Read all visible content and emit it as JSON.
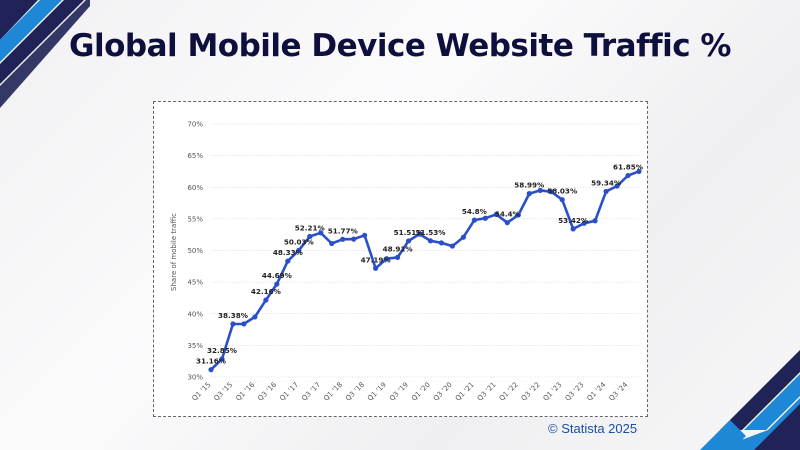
{
  "title": "Global Mobile Device Website Traffic %",
  "source": "© Statista 2025",
  "colors": {
    "line": "#2a4fc9",
    "title": "#0e0f3d",
    "accent_dark": "#1f2358",
    "accent_blue": "#1e88d6"
  },
  "chart_data": {
    "type": "line",
    "title": "",
    "xlabel": "",
    "ylabel": "Share of mobile traffic",
    "ylim": [
      30,
      70
    ],
    "yticks": [
      "30%",
      "35%",
      "40%",
      "45%",
      "50%",
      "55%",
      "60%",
      "65%",
      "70%"
    ],
    "grid": true,
    "x": [
      "Q1 '15",
      "Q2 '15",
      "Q3 '15",
      "Q4 '15",
      "Q1 '16",
      "Q2 '16",
      "Q3 '16",
      "Q4 '16",
      "Q1 '17",
      "Q2 '17",
      "Q3 '17",
      "Q4 '17",
      "Q1 '18",
      "Q2 '18",
      "Q3 '18",
      "Q4 '18",
      "Q1 '19",
      "Q2 '19",
      "Q3 '19",
      "Q4 '19",
      "Q1 '20",
      "Q2 '20",
      "Q3 '20",
      "Q4 '20",
      "Q1 '21",
      "Q2 '21",
      "Q3 '21",
      "Q4 '21",
      "Q1 '22",
      "Q2 '22",
      "Q3 '22",
      "Q4 '22",
      "Q1 '23",
      "Q2 '23",
      "Q3 '23",
      "Q4 '23",
      "Q1 '24",
      "Q2 '24",
      "Q3 '24",
      "Q4 '24"
    ],
    "xtick_labels": [
      "Q1 '15",
      "Q3 '15",
      "Q1 '16",
      "Q3 '16",
      "Q1 '17",
      "Q3 '17",
      "Q1 '18",
      "Q3 '18",
      "Q1 '19",
      "Q3 '19",
      "Q1 '20",
      "Q3 '20",
      "Q1 '21",
      "Q3 '21",
      "Q1 '22",
      "Q3 '22",
      "Q1 '23",
      "Q3 '23",
      "Q1 '24",
      "Q3 '24"
    ],
    "values": [
      31.16,
      32.85,
      38.38,
      38.4,
      39.5,
      42.16,
      44.69,
      48.33,
      50.03,
      52.21,
      52.8,
      51.1,
      51.77,
      51.8,
      52.4,
      47.19,
      48.7,
      48.91,
      51.51,
      52.6,
      51.53,
      51.2,
      50.7,
      52.1,
      54.8,
      55.1,
      55.7,
      54.4,
      55.6,
      58.99,
      59.5,
      59.3,
      58.03,
      53.42,
      54.3,
      54.7,
      59.34,
      60.2,
      61.85,
      62.5
    ],
    "data_labels": [
      {
        "index": 0,
        "text": "31.16%"
      },
      {
        "index": 1,
        "text": "32.85%"
      },
      {
        "index": 2,
        "text": "38.38%"
      },
      {
        "index": 5,
        "text": "42.16%"
      },
      {
        "index": 6,
        "text": "44.69%"
      },
      {
        "index": 7,
        "text": "48.33%"
      },
      {
        "index": 8,
        "text": "50.03%"
      },
      {
        "index": 9,
        "text": "52.21%"
      },
      {
        "index": 12,
        "text": "51.77%"
      },
      {
        "index": 15,
        "text": "47.19%"
      },
      {
        "index": 17,
        "text": "48.91%"
      },
      {
        "index": 18,
        "text": "51.51%"
      },
      {
        "index": 20,
        "text": "51.53%"
      },
      {
        "index": 24,
        "text": "54.8%"
      },
      {
        "index": 27,
        "text": "54.4%"
      },
      {
        "index": 29,
        "text": "58.99%"
      },
      {
        "index": 32,
        "text": "58.03%"
      },
      {
        "index": 33,
        "text": "53.42%"
      },
      {
        "index": 36,
        "text": "59.34%"
      },
      {
        "index": 38,
        "text": "61.85%"
      }
    ]
  }
}
